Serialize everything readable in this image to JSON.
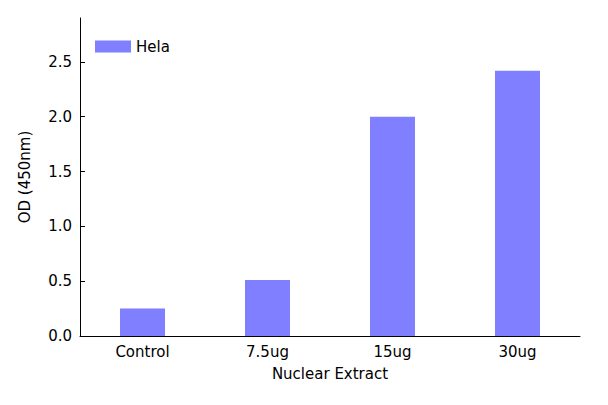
{
  "chart_data": {
    "type": "bar",
    "x_label": "Nuclear Extract",
    "y_label": "OD (450nm)",
    "categories": [
      "Control",
      "7.5ug",
      "15ug",
      "30ug"
    ],
    "series": [
      {
        "name": "Hela",
        "color": "#7f7fff",
        "values": [
          0.25,
          0.51,
          2.0,
          2.42
        ]
      }
    ],
    "ylim": [
      0,
      2.9
    ],
    "yticks": [
      {
        "value": 0,
        "label": "0.0"
      },
      0.5,
      {
        "value": 1,
        "label": "1.0"
      },
      1.5,
      {
        "value": 2,
        "label": "2.0"
      },
      2.5
    ],
    "grid": false,
    "legend": "upper left"
  }
}
